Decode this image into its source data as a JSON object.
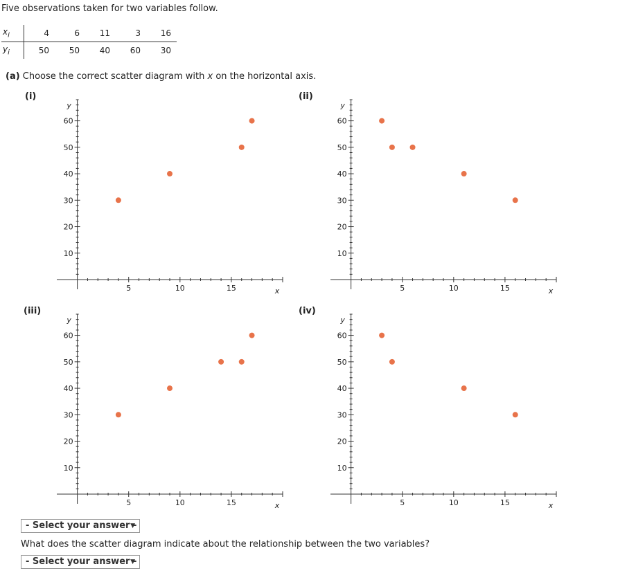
{
  "intro": "Five observations taken for two variables follow.",
  "table": {
    "x_label": "x",
    "x_sub": "i",
    "y_label": "y",
    "y_sub": "i",
    "x_values": [
      "4",
      "6",
      "11",
      "3",
      "16"
    ],
    "y_values": [
      "50",
      "50",
      "40",
      "60",
      "30"
    ]
  },
  "part_a": {
    "label": "(a)",
    "text_before": " Choose the correct scatter diagram with ",
    "var": "x",
    "text_after": " on the horizontal axis."
  },
  "plots": [
    {
      "label": "(i)"
    },
    {
      "label": "(ii)"
    },
    {
      "label": "(iii)"
    },
    {
      "label": "(iv)"
    }
  ],
  "chart_data": [
    {
      "type": "scatter",
      "title": "(i)",
      "xlabel": "x",
      "ylabel": "y",
      "xlim": [
        -2,
        20
      ],
      "ylim": [
        0,
        68
      ],
      "xticks": [
        "5",
        "10",
        "15"
      ],
      "yticks": [
        "10",
        "20",
        "30",
        "40",
        "50",
        "60"
      ],
      "points": [
        [
          4,
          30
        ],
        [
          9,
          40
        ],
        [
          16,
          50
        ],
        [
          17,
          60
        ]
      ]
    },
    {
      "type": "scatter",
      "title": "(ii)",
      "xlabel": "x",
      "ylabel": "y",
      "xlim": [
        -2,
        20
      ],
      "ylim": [
        0,
        68
      ],
      "xticks": [
        "5",
        "10",
        "15"
      ],
      "yticks": [
        "10",
        "20",
        "30",
        "40",
        "50",
        "60"
      ],
      "points": [
        [
          3,
          60
        ],
        [
          4,
          50
        ],
        [
          6,
          50
        ],
        [
          11,
          40
        ],
        [
          16,
          30
        ]
      ]
    },
    {
      "type": "scatter",
      "title": "(iii)",
      "xlabel": "x",
      "ylabel": "y",
      "xlim": [
        -2,
        20
      ],
      "ylim": [
        0,
        68
      ],
      "xticks": [
        "5",
        "10",
        "15"
      ],
      "yticks": [
        "10",
        "20",
        "30",
        "40",
        "50",
        "60"
      ],
      "points": [
        [
          4,
          30
        ],
        [
          9,
          40
        ],
        [
          14,
          50
        ],
        [
          16,
          50
        ],
        [
          17,
          60
        ]
      ]
    },
    {
      "type": "scatter",
      "title": "(iv)",
      "xlabel": "x",
      "ylabel": "y",
      "xlim": [
        -2,
        20
      ],
      "ylim": [
        0,
        68
      ],
      "xticks": [
        "5",
        "10",
        "15"
      ],
      "yticks": [
        "10",
        "20",
        "30",
        "40",
        "50",
        "60"
      ],
      "points": [
        [
          3,
          60
        ],
        [
          4,
          50
        ],
        [
          11,
          40
        ],
        [
          16,
          30
        ]
      ]
    }
  ],
  "colors": {
    "point": "#e8734a",
    "axis": "#333333"
  },
  "select1": {
    "label": "- Select your answer -",
    "icon": "dropdown-arrow-icon"
  },
  "question": "What does the scatter diagram indicate about the relationship between the two variables?",
  "select2": {
    "label": "- Select your answer -",
    "icon": "dropdown-arrow-icon"
  }
}
